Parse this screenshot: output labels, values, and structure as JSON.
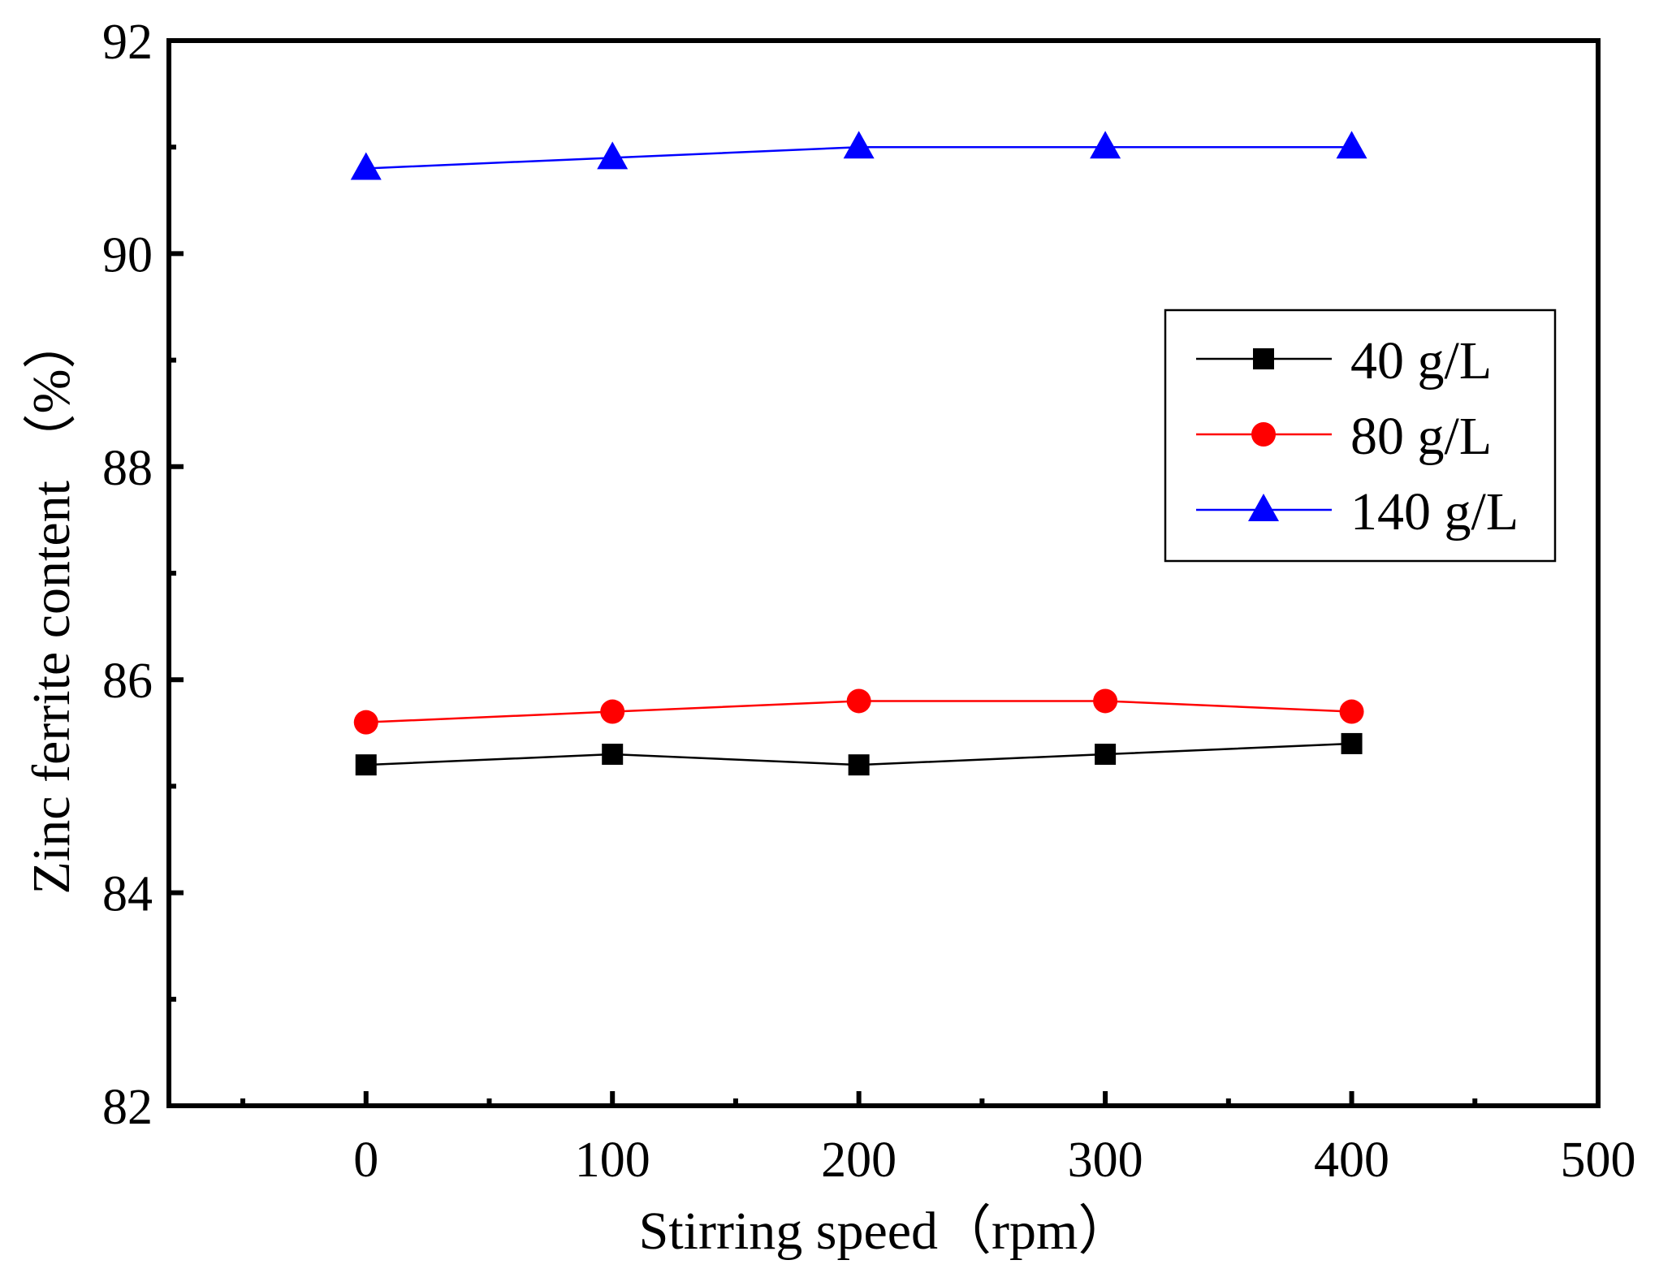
{
  "chart_data": {
    "type": "line",
    "title": "",
    "xlabel": "Stirring speed（rpm）",
    "ylabel": "Zinc ferrite content （%）",
    "xlim": [
      -80,
      500
    ],
    "ylim": [
      82,
      92
    ],
    "x_ticks": [
      0,
      100,
      200,
      300,
      400,
      500
    ],
    "y_ticks": [
      82,
      84,
      86,
      88,
      90,
      92
    ],
    "x_minor_ticks": [
      -50,
      50,
      150,
      250,
      350,
      450
    ],
    "y_minor_ticks": [
      83,
      85,
      87,
      89,
      91
    ],
    "x": [
      0,
      100,
      200,
      300,
      400
    ],
    "series": [
      {
        "name": "40 g/L",
        "color": "#000000",
        "marker": "square",
        "values": [
          85.2,
          85.3,
          85.2,
          85.3,
          85.4
        ]
      },
      {
        "name": "80 g/L",
        "color": "#ff0000",
        "marker": "circle",
        "values": [
          85.6,
          85.7,
          85.8,
          85.8,
          85.7
        ]
      },
      {
        "name": "140 g/L",
        "color": "#0000ff",
        "marker": "triangle",
        "values": [
          90.8,
          90.9,
          91.0,
          91.0,
          91.0
        ]
      }
    ],
    "grid": false,
    "legend_position": "upper-right"
  }
}
